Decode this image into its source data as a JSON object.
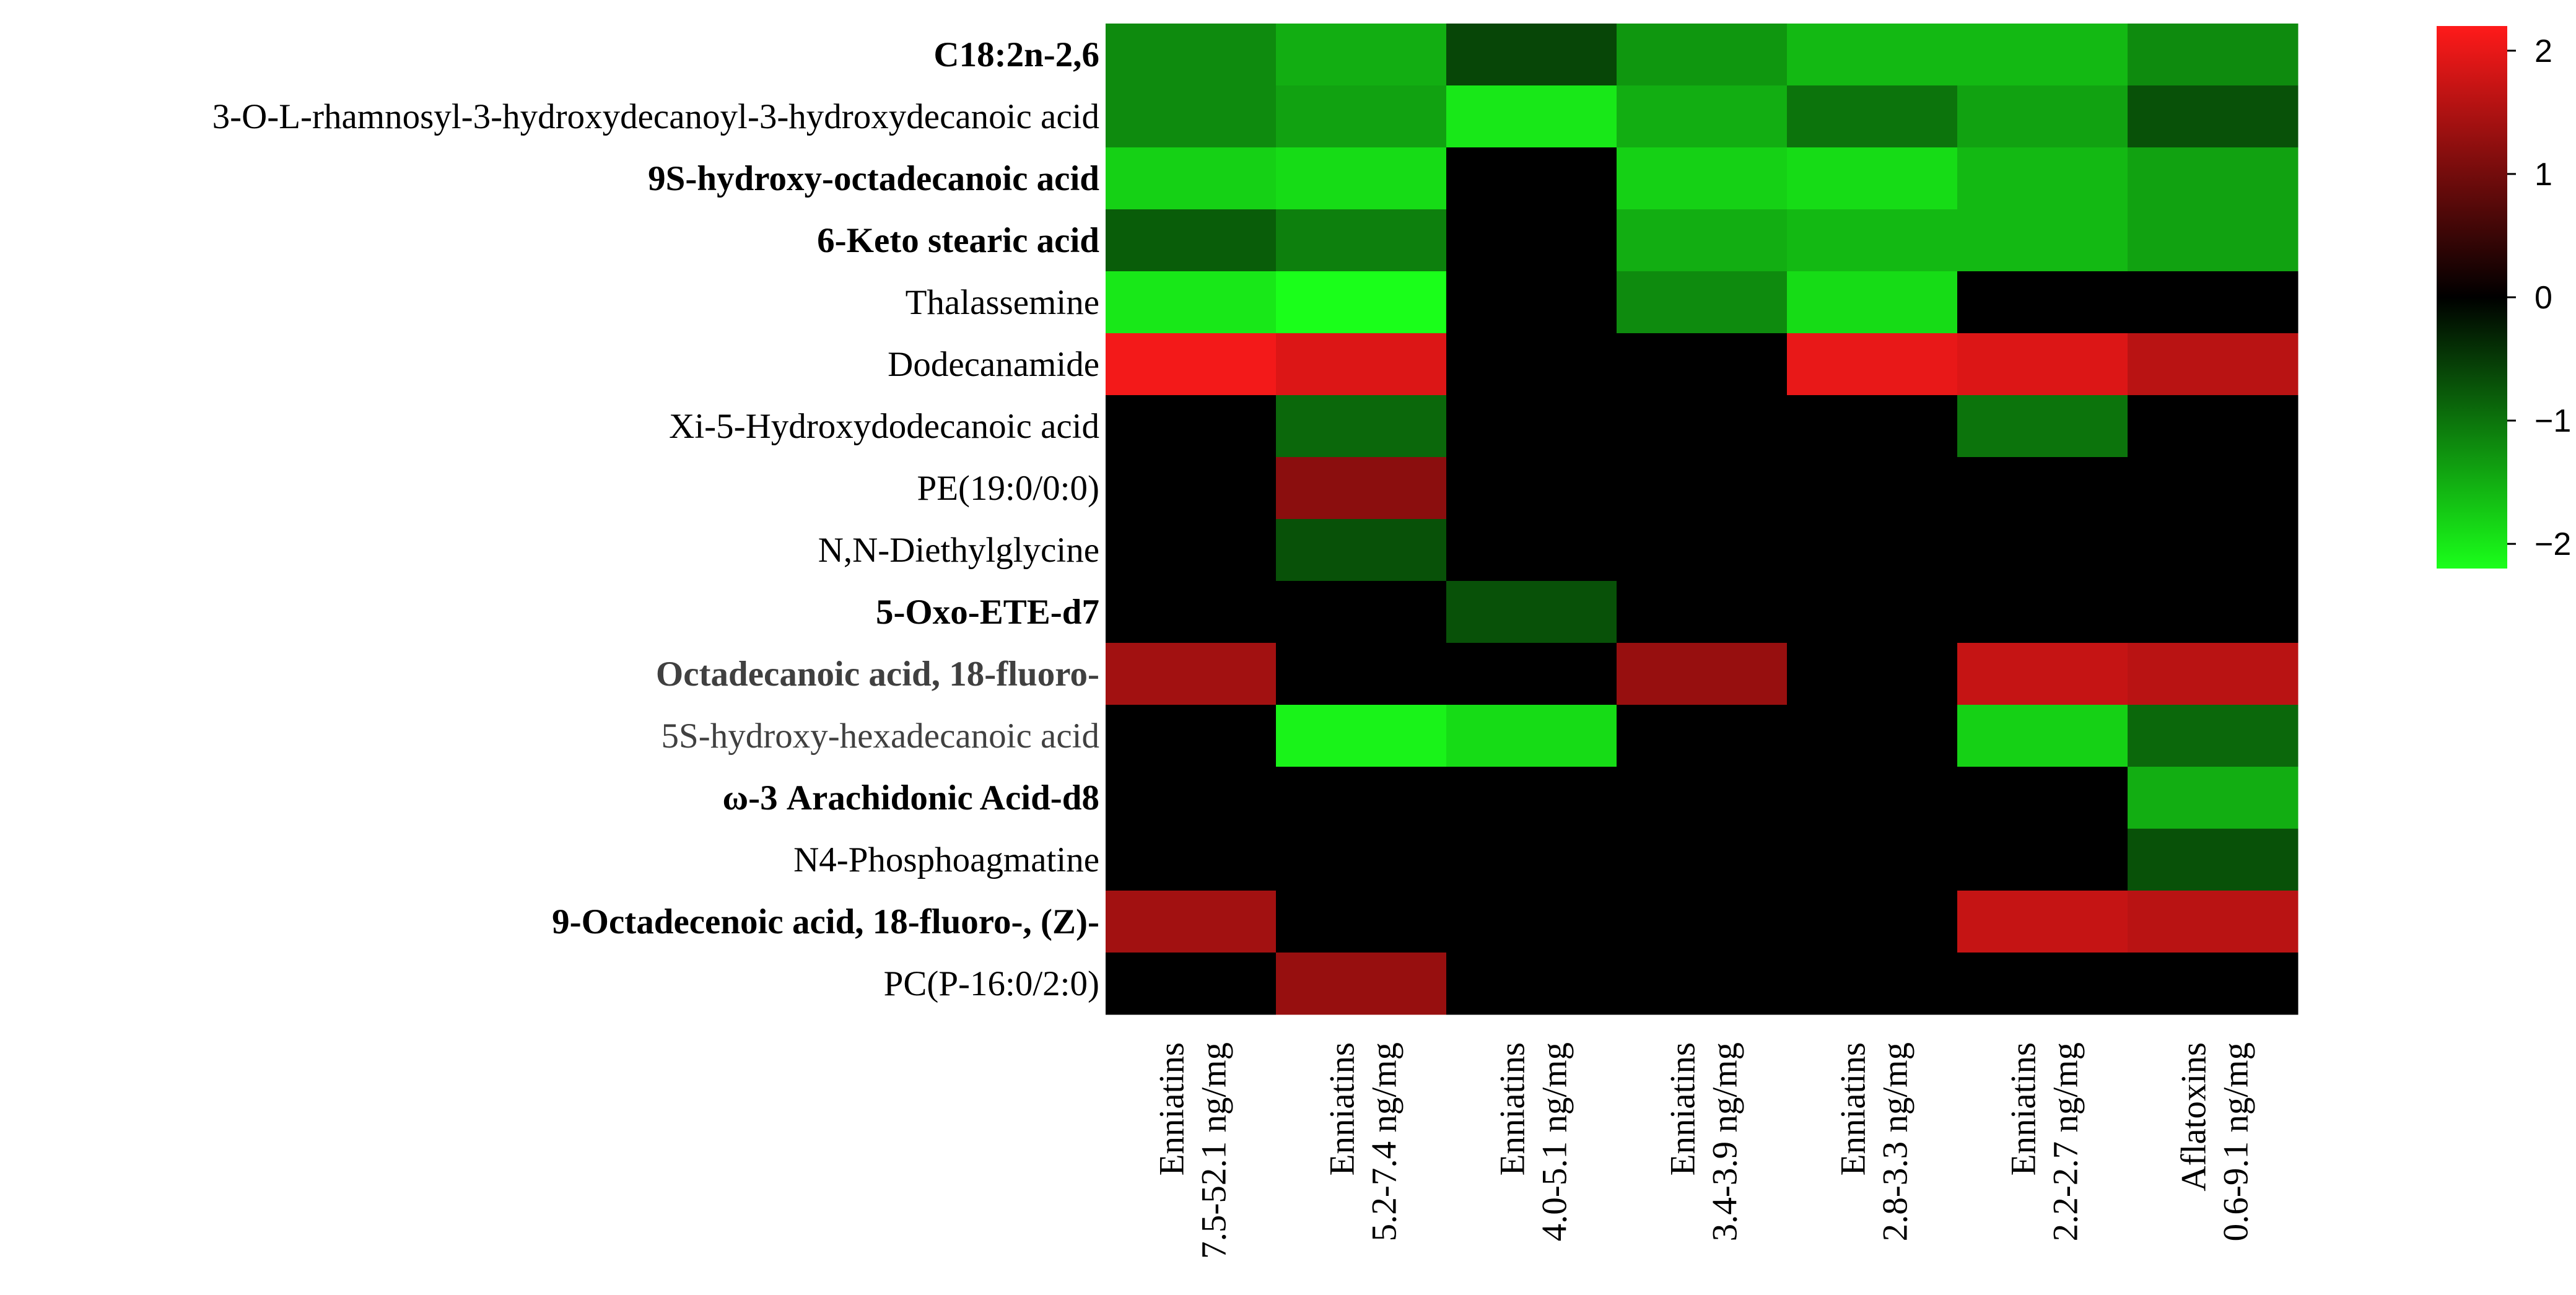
{
  "chart_data": {
    "type": "heatmap",
    "title": "",
    "rows": [
      {
        "label": "C18:2n-2,6",
        "bold": true,
        "grey": false
      },
      {
        "label": "3-O-L-rhamnosyl-3-hydroxydecanoyl-3-hydroxydecanoic acid",
        "bold": false,
        "grey": false
      },
      {
        "label": "9S-hydroxy-octadecanoic acid",
        "bold": true,
        "grey": false
      },
      {
        "label": "6-Keto stearic acid",
        "bold": true,
        "grey": false
      },
      {
        "label": "Thalassemine",
        "bold": false,
        "grey": false
      },
      {
        "label": "Dodecanamide",
        "bold": false,
        "grey": false
      },
      {
        "label": "Xi-5-Hydroxydodecanoic acid",
        "bold": false,
        "grey": false
      },
      {
        "label": "PE(19:0/0:0)",
        "bold": false,
        "grey": false
      },
      {
        "label": "N,N-Diethylglycine",
        "bold": false,
        "grey": false
      },
      {
        "label": "5-Oxo-ETE-d7",
        "bold": true,
        "grey": false
      },
      {
        "label": "Octadecanoic acid, 18-fluoro-",
        "bold": true,
        "grey": true
      },
      {
        "label": "5S-hydroxy-hexadecanoic acid",
        "bold": false,
        "grey": true
      },
      {
        "label": "ω-3 Arachidonic Acid-d8",
        "bold": true,
        "grey": false
      },
      {
        "label": "N4-Phosphoagmatine",
        "bold": false,
        "grey": false
      },
      {
        "label": "9-Octadecenoic acid, 18-fluoro-, (Z)-",
        "bold": true,
        "grey": false
      },
      {
        "label": "PC(P-16:0/2:0)",
        "bold": false,
        "grey": false
      }
    ],
    "columns": [
      {
        "line1": "Enniatins",
        "line2": "7.5-52.1 ng/mg"
      },
      {
        "line1": "Enniatins",
        "line2": "5.2-7.4 ng/mg"
      },
      {
        "line1": "Enniatins",
        "line2": "4.0-5.1 ng/mg"
      },
      {
        "line1": "Enniatins",
        "line2": "3.4-3.9 ng/mg"
      },
      {
        "line1": "Enniatins",
        "line2": "2.8-3.3 ng/mg"
      },
      {
        "line1": "Enniatins",
        "line2": "2.2-2.7 ng/mg"
      },
      {
        "line1": "Aflatoxins",
        "line2": "0.6-9.1 ng/mg"
      }
    ],
    "values": [
      [
        -1.2,
        -1.5,
        -0.6,
        -1.3,
        -1.6,
        -1.6,
        -1.2
      ],
      [
        -1.2,
        -1.4,
        -2.0,
        -1.5,
        -1.0,
        -1.4,
        -0.7
      ],
      [
        -1.8,
        -1.9,
        0,
        -1.8,
        -1.9,
        -1.6,
        -1.4
      ],
      [
        -0.8,
        -1.1,
        0,
        -1.5,
        -1.6,
        -1.6,
        -1.4
      ],
      [
        -2.0,
        -2.2,
        0,
        -1.2,
        -1.9,
        0,
        0
      ],
      [
        2.1,
        1.9,
        0,
        0,
        2.0,
        1.9,
        1.6
      ],
      [
        0,
        -0.9,
        0,
        0,
        0,
        -1.0,
        0
      ],
      [
        0,
        1.2,
        0,
        0,
        0,
        0,
        0
      ],
      [
        0,
        -0.7,
        0,
        0,
        0,
        0,
        0
      ],
      [
        0,
        0,
        -0.7,
        0,
        0,
        0,
        0
      ],
      [
        1.4,
        0,
        0,
        1.3,
        0,
        1.7,
        1.6
      ],
      [
        0,
        -2.1,
        -1.9,
        0,
        0,
        -1.8,
        -0.9
      ],
      [
        0,
        0,
        0,
        0,
        0,
        0,
        -1.5
      ],
      [
        0,
        0,
        0,
        0,
        0,
        0,
        -0.7
      ],
      [
        1.4,
        0,
        0,
        0,
        0,
        1.7,
        1.6
      ],
      [
        0,
        1.3,
        0,
        0,
        0,
        0,
        0
      ]
    ],
    "colorbar": {
      "range": [
        -2.2,
        2.2
      ],
      "ticks": [
        {
          "value": 2,
          "label": "2"
        },
        {
          "value": 1,
          "label": "1"
        },
        {
          "value": 0,
          "label": "0"
        },
        {
          "value": -1,
          "label": "−1"
        },
        {
          "value": -2,
          "label": "−2"
        }
      ],
      "low_color": "#1aff1a",
      "mid_color": "#000000",
      "high_color": "#ff1a1a"
    }
  }
}
